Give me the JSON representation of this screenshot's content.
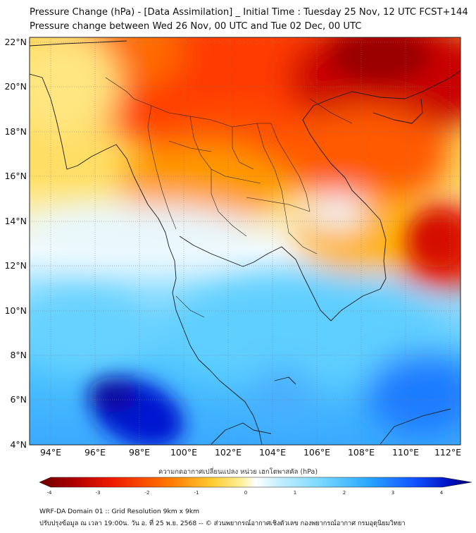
{
  "title_line1": "Pressure Change (hPa) - [Data Assimilation] _ Initial Time : Tuesday 25 Nov, 12 UTC FCST+144",
  "title_line2": "Pressure change between Wed 26 Nov, 00 UTC and Tue 02 Dec, 00 UTC",
  "map": {
    "lat_labels": [
      "22°N",
      "20°N",
      "18°N",
      "16°N",
      "14°N",
      "12°N",
      "10°N",
      "8°N",
      "6°N",
      "4°N"
    ],
    "lon_labels": [
      "94°E",
      "96°E",
      "98°E",
      "100°E",
      "102°E",
      "104°E",
      "106°E",
      "108°E",
      "110°E",
      "112°E"
    ],
    "lat_range": [
      4,
      22
    ],
    "lon_range": [
      93,
      112.5
    ],
    "grid": true,
    "colors": {
      "strong_fall": "#8c0000",
      "fall": "#f01c00",
      "slight_fall": "#ffb000",
      "weak_fall": "#fff3a0",
      "weak_rise": "#d8f4ff",
      "rise": "#34b8ff",
      "strong_rise": "#0010c8"
    }
  },
  "colorbar": {
    "title": "ความกดอากาศเปลี่ยนแปลง หน่วย เฮกโตพาสคัล (hPa)",
    "ticks": [
      "-4",
      "-3",
      "-2",
      "-1",
      "0",
      "1",
      "2",
      "3",
      "4"
    ],
    "min": -4,
    "max": 4
  },
  "footer_line1": "WRF-DA Domain 01 :: Grid Resolution 9km x 9km",
  "footer_line2": "ปรับปรุงข้อมูล ณ เวลา 19:00น. วัน อ. ที่ 25 พ.ย. 2568 -- © ส่วนพยากรณ์อากาศเชิงตัวเลข กองพยากรณ์อากาศ กรมอุตุนิยมวิทยา"
}
